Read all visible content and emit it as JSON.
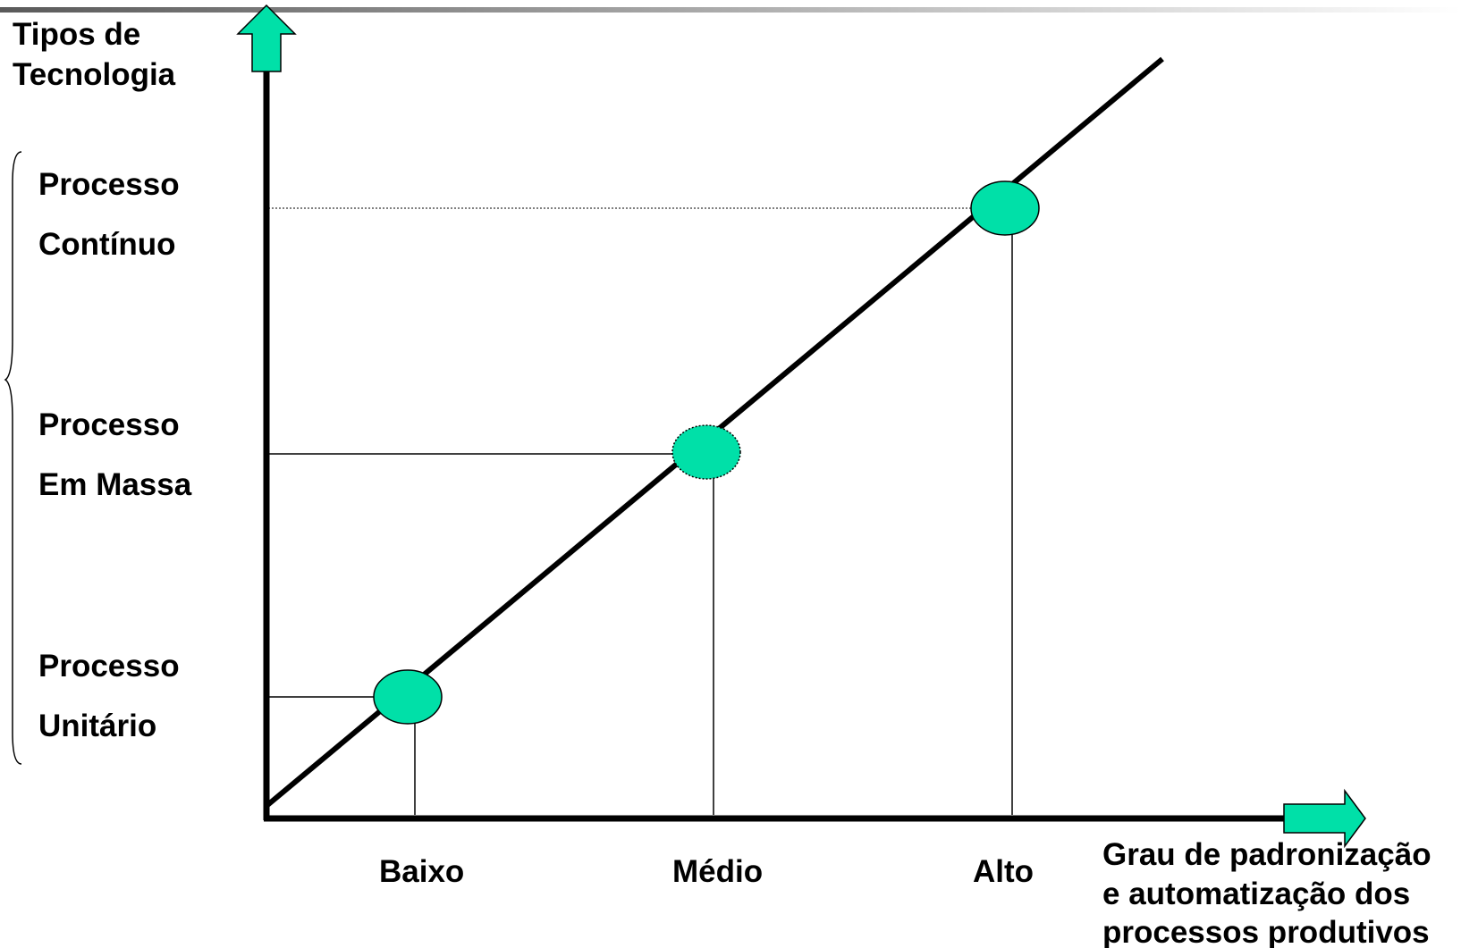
{
  "colors": {
    "accent": "#00E0A8",
    "line": "#000000",
    "background": "#FFFFFF"
  },
  "y_axis": {
    "title_lines": [
      "Tipos de",
      "Tecnologia"
    ],
    "categories": [
      {
        "line1": "Processo",
        "line2": "Unitário"
      },
      {
        "line1": "Processo",
        "line2": "Em Massa"
      },
      {
        "line1": "Processo",
        "line2": "Contínuo"
      }
    ]
  },
  "x_axis": {
    "title_lines": [
      "Grau de padronização",
      "e automatização dos",
      "processos produtivos"
    ],
    "ticks": [
      "Baixo",
      "Médio",
      "Alto"
    ]
  },
  "points": [
    {
      "x": "Baixo",
      "y": "Processo Unitário"
    },
    {
      "x": "Médio",
      "y": "Processo Em Massa"
    },
    {
      "x": "Alto",
      "y": "Processo Contínuo"
    }
  ]
}
